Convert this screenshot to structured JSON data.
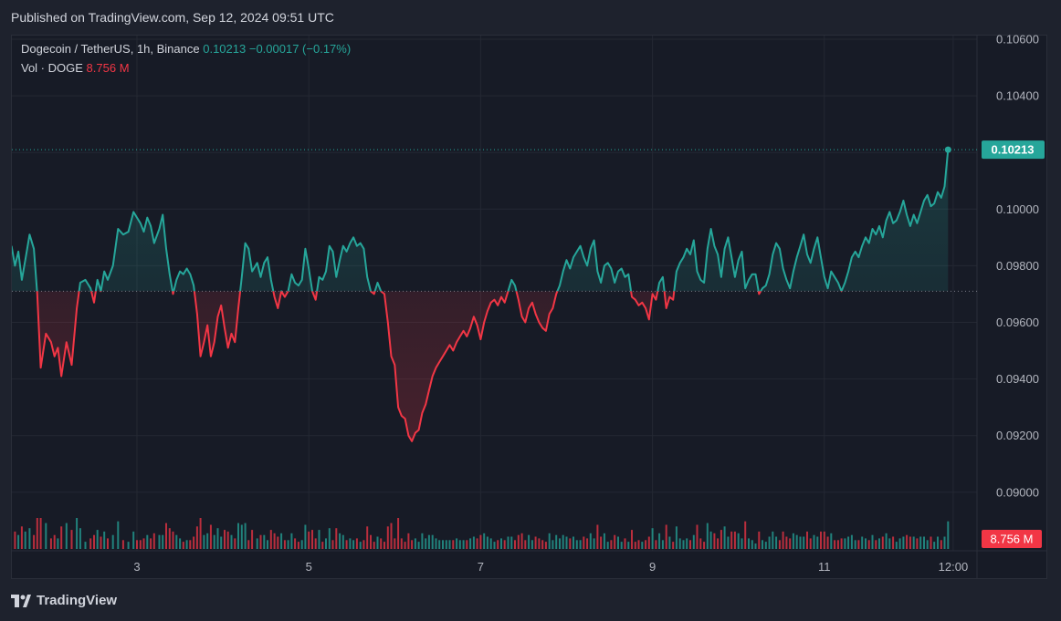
{
  "published": "Published on TradingView.com, Sep 12, 2024 09:51 UTC",
  "legend": {
    "symbol": "Dogecoin / TetherUS, 1h, Binance",
    "last": "0.10213",
    "change": "−0.00017 (−0.17%)",
    "vol_label": "Vol · DOGE",
    "vol_value": "8.756 M"
  },
  "footer": {
    "brand": "TradingView",
    "icon": "tradingview-logo-icon"
  },
  "colors": {
    "up": "#26a69a",
    "down": "#f23645",
    "bg": "#171b26",
    "grid": "#242833"
  },
  "chart_data": {
    "type": "line",
    "title": "Dogecoin / TetherUS, 1h, Binance",
    "baseline": 0.0971,
    "ylim": [
      0.0886,
      0.1063
    ],
    "y_ticks": [
      "0.10600",
      "0.10400",
      "0.10200",
      "0.10000",
      "0.09800",
      "0.09600",
      "0.09400",
      "0.09200",
      "0.09000"
    ],
    "x_ticks": [
      {
        "label": "3",
        "day": 2.0
      },
      {
        "label": "5",
        "day": 4.0
      },
      {
        "label": "7",
        "day": 6.0
      },
      {
        "label": "9",
        "day": 8.0
      },
      {
        "label": "11",
        "day": 10.0
      },
      {
        "label": "12:00",
        "day": 11.5
      }
    ],
    "x_range_days": [
      0.54,
      11.55
    ],
    "last_price_label": "0.10213",
    "vol_label": "8.756 M",
    "series": [
      {
        "points": [
          [
            0.54,
            0.0987
          ],
          [
            0.58,
            0.098
          ],
          [
            0.62,
            0.0985
          ],
          [
            0.66,
            0.0975
          ],
          [
            0.7,
            0.0982
          ],
          [
            0.75,
            0.0991
          ],
          [
            0.8,
            0.0986
          ],
          [
            0.84,
            0.097
          ],
          [
            0.88,
            0.0944
          ],
          [
            0.94,
            0.0956
          ],
          [
            1.0,
            0.0953
          ],
          [
            1.04,
            0.0948
          ],
          [
            1.08,
            0.0951
          ],
          [
            1.12,
            0.0941
          ],
          [
            1.18,
            0.0953
          ],
          [
            1.24,
            0.0945
          ],
          [
            1.3,
            0.0965
          ],
          [
            1.34,
            0.0974
          ],
          [
            1.4,
            0.0975
          ],
          [
            1.46,
            0.0972
          ],
          [
            1.5,
            0.0967
          ],
          [
            1.54,
            0.0975
          ],
          [
            1.58,
            0.0971
          ],
          [
            1.62,
            0.0978
          ],
          [
            1.66,
            0.0975
          ],
          [
            1.72,
            0.098
          ],
          [
            1.78,
            0.0993
          ],
          [
            1.84,
            0.0991
          ],
          [
            1.9,
            0.0992
          ],
          [
            1.96,
            0.0999
          ],
          [
            2.0,
            0.0997
          ],
          [
            2.04,
            0.0995
          ],
          [
            2.08,
            0.0992
          ],
          [
            2.12,
            0.0997
          ],
          [
            2.16,
            0.0994
          ],
          [
            2.2,
            0.0988
          ],
          [
            2.26,
            0.0993
          ],
          [
            2.3,
            0.0998
          ],
          [
            2.34,
            0.0986
          ],
          [
            2.38,
            0.0977
          ],
          [
            2.42,
            0.097
          ],
          [
            2.46,
            0.0975
          ],
          [
            2.5,
            0.0978
          ],
          [
            2.54,
            0.0977
          ],
          [
            2.58,
            0.0979
          ],
          [
            2.62,
            0.0977
          ],
          [
            2.66,
            0.0973
          ],
          [
            2.7,
            0.0963
          ],
          [
            2.74,
            0.0948
          ],
          [
            2.78,
            0.0953
          ],
          [
            2.82,
            0.0959
          ],
          [
            2.86,
            0.0948
          ],
          [
            2.9,
            0.0953
          ],
          [
            2.94,
            0.0962
          ],
          [
            2.98,
            0.0966
          ],
          [
            3.02,
            0.0958
          ],
          [
            3.06,
            0.0951
          ],
          [
            3.1,
            0.0956
          ],
          [
            3.14,
            0.0953
          ],
          [
            3.18,
            0.0965
          ],
          [
            3.22,
            0.0976
          ],
          [
            3.26,
            0.0988
          ],
          [
            3.3,
            0.0986
          ],
          [
            3.34,
            0.0978
          ],
          [
            3.4,
            0.0981
          ],
          [
            3.44,
            0.0976
          ],
          [
            3.48,
            0.0981
          ],
          [
            3.52,
            0.0983
          ],
          [
            3.56,
            0.0975
          ],
          [
            3.6,
            0.0969
          ],
          [
            3.64,
            0.0965
          ],
          [
            3.68,
            0.0971
          ],
          [
            3.72,
            0.0969
          ],
          [
            3.76,
            0.0971
          ],
          [
            3.8,
            0.0977
          ],
          [
            3.84,
            0.0974
          ],
          [
            3.88,
            0.0973
          ],
          [
            3.92,
            0.0975
          ],
          [
            3.96,
            0.0986
          ],
          [
            4.0,
            0.0979
          ],
          [
            4.04,
            0.0971
          ],
          [
            4.08,
            0.0968
          ],
          [
            4.12,
            0.0976
          ],
          [
            4.16,
            0.0975
          ],
          [
            4.2,
            0.0978
          ],
          [
            4.24,
            0.0987
          ],
          [
            4.28,
            0.0985
          ],
          [
            4.32,
            0.0976
          ],
          [
            4.36,
            0.0982
          ],
          [
            4.4,
            0.0987
          ],
          [
            4.44,
            0.0985
          ],
          [
            4.48,
            0.0988
          ],
          [
            4.52,
            0.099
          ],
          [
            4.56,
            0.0987
          ],
          [
            4.6,
            0.0988
          ],
          [
            4.64,
            0.0986
          ],
          [
            4.68,
            0.0976
          ],
          [
            4.72,
            0.0971
          ],
          [
            4.76,
            0.097
          ],
          [
            4.8,
            0.0974
          ],
          [
            4.84,
            0.0971
          ],
          [
            4.88,
            0.097
          ],
          [
            4.92,
            0.096
          ],
          [
            4.96,
            0.0948
          ],
          [
            5.0,
            0.0945
          ],
          [
            5.04,
            0.093
          ],
          [
            5.08,
            0.0927
          ],
          [
            5.12,
            0.0926
          ],
          [
            5.16,
            0.092
          ],
          [
            5.2,
            0.0918
          ],
          [
            5.24,
            0.0921
          ],
          [
            5.28,
            0.0922
          ],
          [
            5.32,
            0.0928
          ],
          [
            5.36,
            0.0931
          ],
          [
            5.4,
            0.0936
          ],
          [
            5.44,
            0.0941
          ],
          [
            5.48,
            0.0944
          ],
          [
            5.52,
            0.0946
          ],
          [
            5.56,
            0.0948
          ],
          [
            5.6,
            0.095
          ],
          [
            5.64,
            0.0952
          ],
          [
            5.68,
            0.095
          ],
          [
            5.72,
            0.0953
          ],
          [
            5.76,
            0.0955
          ],
          [
            5.8,
            0.0957
          ],
          [
            5.84,
            0.0955
          ],
          [
            5.88,
            0.0958
          ],
          [
            5.92,
            0.0962
          ],
          [
            5.96,
            0.0959
          ],
          [
            6.0,
            0.0954
          ],
          [
            6.04,
            0.096
          ],
          [
            6.08,
            0.0964
          ],
          [
            6.12,
            0.0967
          ],
          [
            6.16,
            0.0968
          ],
          [
            6.2,
            0.0966
          ],
          [
            6.24,
            0.0969
          ],
          [
            6.28,
            0.0967
          ],
          [
            6.32,
            0.0971
          ],
          [
            6.36,
            0.0975
          ],
          [
            6.4,
            0.0973
          ],
          [
            6.44,
            0.0968
          ],
          [
            6.48,
            0.0962
          ],
          [
            6.52,
            0.096
          ],
          [
            6.56,
            0.0965
          ],
          [
            6.6,
            0.0967
          ],
          [
            6.64,
            0.0963
          ],
          [
            6.68,
            0.096
          ],
          [
            6.72,
            0.0958
          ],
          [
            6.76,
            0.0957
          ],
          [
            6.8,
            0.0963
          ],
          [
            6.84,
            0.0965
          ],
          [
            6.88,
            0.097
          ],
          [
            6.92,
            0.0973
          ],
          [
            6.96,
            0.0978
          ],
          [
            7.0,
            0.0982
          ],
          [
            7.04,
            0.0979
          ],
          [
            7.08,
            0.0983
          ],
          [
            7.12,
            0.0985
          ],
          [
            7.16,
            0.0987
          ],
          [
            7.2,
            0.0983
          ],
          [
            7.24,
            0.098
          ],
          [
            7.28,
            0.0986
          ],
          [
            7.32,
            0.0989
          ],
          [
            7.36,
            0.0978
          ],
          [
            7.4,
            0.0974
          ],
          [
            7.44,
            0.098
          ],
          [
            7.48,
            0.0981
          ],
          [
            7.52,
            0.0979
          ],
          [
            7.56,
            0.0974
          ],
          [
            7.6,
            0.0978
          ],
          [
            7.64,
            0.0979
          ],
          [
            7.68,
            0.0976
          ],
          [
            7.72,
            0.0977
          ],
          [
            7.76,
            0.0969
          ],
          [
            7.8,
            0.0968
          ],
          [
            7.84,
            0.0966
          ],
          [
            7.88,
            0.0967
          ],
          [
            7.92,
            0.0965
          ],
          [
            7.96,
            0.0961
          ],
          [
            8.0,
            0.097
          ],
          [
            8.04,
            0.0968
          ],
          [
            8.08,
            0.0974
          ],
          [
            8.12,
            0.0976
          ],
          [
            8.16,
            0.0965
          ],
          [
            8.2,
            0.0969
          ],
          [
            8.24,
            0.0968
          ],
          [
            8.28,
            0.0978
          ],
          [
            8.32,
            0.0981
          ],
          [
            8.36,
            0.0983
          ],
          [
            8.4,
            0.0986
          ],
          [
            8.44,
            0.0984
          ],
          [
            8.48,
            0.0989
          ],
          [
            8.52,
            0.0978
          ],
          [
            8.56,
            0.0975
          ],
          [
            8.6,
            0.0974
          ],
          [
            8.64,
            0.0986
          ],
          [
            8.68,
            0.0993
          ],
          [
            8.72,
            0.0987
          ],
          [
            8.76,
            0.0984
          ],
          [
            8.8,
            0.0976
          ],
          [
            8.84,
            0.0986
          ],
          [
            8.88,
            0.099
          ],
          [
            8.92,
            0.0983
          ],
          [
            8.96,
            0.0976
          ],
          [
            9.0,
            0.0982
          ],
          [
            9.04,
            0.0985
          ],
          [
            9.08,
            0.0972
          ],
          [
            9.12,
            0.0975
          ],
          [
            9.16,
            0.0977
          ],
          [
            9.2,
            0.0977
          ],
          [
            9.24,
            0.097
          ],
          [
            9.28,
            0.0972
          ],
          [
            9.32,
            0.0973
          ],
          [
            9.36,
            0.0977
          ],
          [
            9.4,
            0.0984
          ],
          [
            9.44,
            0.0988
          ],
          [
            9.48,
            0.0986
          ],
          [
            9.52,
            0.0979
          ],
          [
            9.56,
            0.0975
          ],
          [
            9.6,
            0.0972
          ],
          [
            9.64,
            0.0978
          ],
          [
            9.68,
            0.0983
          ],
          [
            9.72,
            0.0987
          ],
          [
            9.76,
            0.0991
          ],
          [
            9.8,
            0.0984
          ],
          [
            9.84,
            0.0981
          ],
          [
            9.88,
            0.0986
          ],
          [
            9.92,
            0.099
          ],
          [
            9.96,
            0.0983
          ],
          [
            10.0,
            0.0976
          ],
          [
            10.04,
            0.0972
          ],
          [
            10.08,
            0.0978
          ],
          [
            10.12,
            0.0976
          ],
          [
            10.16,
            0.0974
          ],
          [
            10.2,
            0.0971
          ],
          [
            10.24,
            0.0974
          ],
          [
            10.28,
            0.0978
          ],
          [
            10.32,
            0.0983
          ],
          [
            10.36,
            0.0985
          ],
          [
            10.4,
            0.0983
          ],
          [
            10.44,
            0.0987
          ],
          [
            10.48,
            0.099
          ],
          [
            10.52,
            0.0988
          ],
          [
            10.56,
            0.0993
          ],
          [
            10.6,
            0.0991
          ],
          [
            10.64,
            0.0994
          ],
          [
            10.68,
            0.099
          ],
          [
            10.72,
            0.0996
          ],
          [
            10.76,
            0.0999
          ],
          [
            10.8,
            0.0995
          ],
          [
            10.84,
            0.0996
          ],
          [
            10.88,
            0.0999
          ],
          [
            10.92,
            0.1003
          ],
          [
            10.96,
            0.0998
          ],
          [
            11.0,
            0.0994
          ],
          [
            11.04,
            0.0998
          ],
          [
            11.08,
            0.0995
          ],
          [
            11.12,
            0.0999
          ],
          [
            11.16,
            0.1003
          ],
          [
            11.2,
            0.1005
          ],
          [
            11.24,
            0.1001
          ],
          [
            11.28,
            0.1002
          ],
          [
            11.32,
            0.1006
          ],
          [
            11.36,
            0.1004
          ],
          [
            11.4,
            0.1008
          ],
          [
            11.44,
            0.1021
          ]
        ]
      }
    ],
    "volume": []
  }
}
